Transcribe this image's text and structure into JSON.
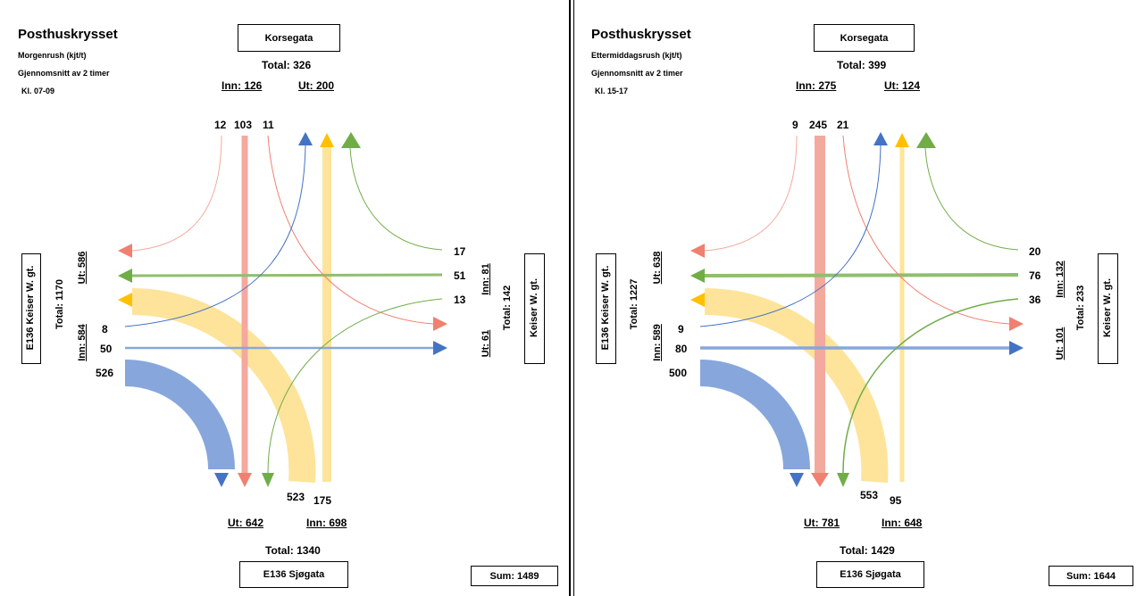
{
  "panels": [
    {
      "title": "Posthuskrysset",
      "period": "Morgenrush (kjt/t)",
      "average": "Gjennomsnitt av 2 timer",
      "time": "Kl. 07-09",
      "north": {
        "road": "Korsegata",
        "total": "Total: 326",
        "inn": "Inn: 126",
        "ut": "Ut: 200",
        "right": "12",
        "straight": "103",
        "left": "11"
      },
      "east": {
        "road": "Keiser W. gt.",
        "total": "Total: 142",
        "inn": "Inn: 81",
        "ut": "Ut: 61",
        "right": "17",
        "straight": "51",
        "left": "13"
      },
      "west": {
        "road": "E136 Keiser W. gt.",
        "total": "Total: 1170",
        "inn": "Inn: 584",
        "ut": "Ut: 586",
        "left": "8",
        "straight": "50",
        "right": "526"
      },
      "south": {
        "road": "E136 Sjøgata",
        "total": "Total: 1340",
        "inn": "Inn: 698",
        "ut": "Ut: 642",
        "left": "523",
        "straight": "175"
      },
      "sum": "Sum: 1489"
    },
    {
      "title": "Posthuskrysset",
      "period": "Ettermiddagsrush (kjt/t)",
      "average": "Gjennomsnitt av 2 timer",
      "time": "Kl. 15-17",
      "north": {
        "road": "Korsegata",
        "total": "Total: 399",
        "inn": "Inn: 275",
        "ut": "Ut: 124",
        "right": "9",
        "straight": "245",
        "left": "21"
      },
      "east": {
        "road": "Keiser W. gt.",
        "total": "Total: 233",
        "inn": "Inn: 132",
        "ut": "Ut: 101",
        "right": "20",
        "straight": "76",
        "left": "36"
      },
      "west": {
        "road": "E136 Keiser W. gt.",
        "total": "Total: 1227",
        "inn": "Inn: 589",
        "ut": "Ut: 638",
        "left": "9",
        "straight": "80",
        "right": "500"
      },
      "south": {
        "road": "E136 Sjøgata",
        "total": "Total: 1429",
        "inn": "Inn: 648",
        "ut": "Ut: 781",
        "left": "553",
        "straight": "95"
      },
      "sum": "Sum: 1644"
    }
  ],
  "colors": {
    "north": "#f4a99e",
    "east": "#8fbf6e",
    "west": "#87a7dc",
    "south": "#fde49a",
    "south_arrow": "#ffc000"
  }
}
